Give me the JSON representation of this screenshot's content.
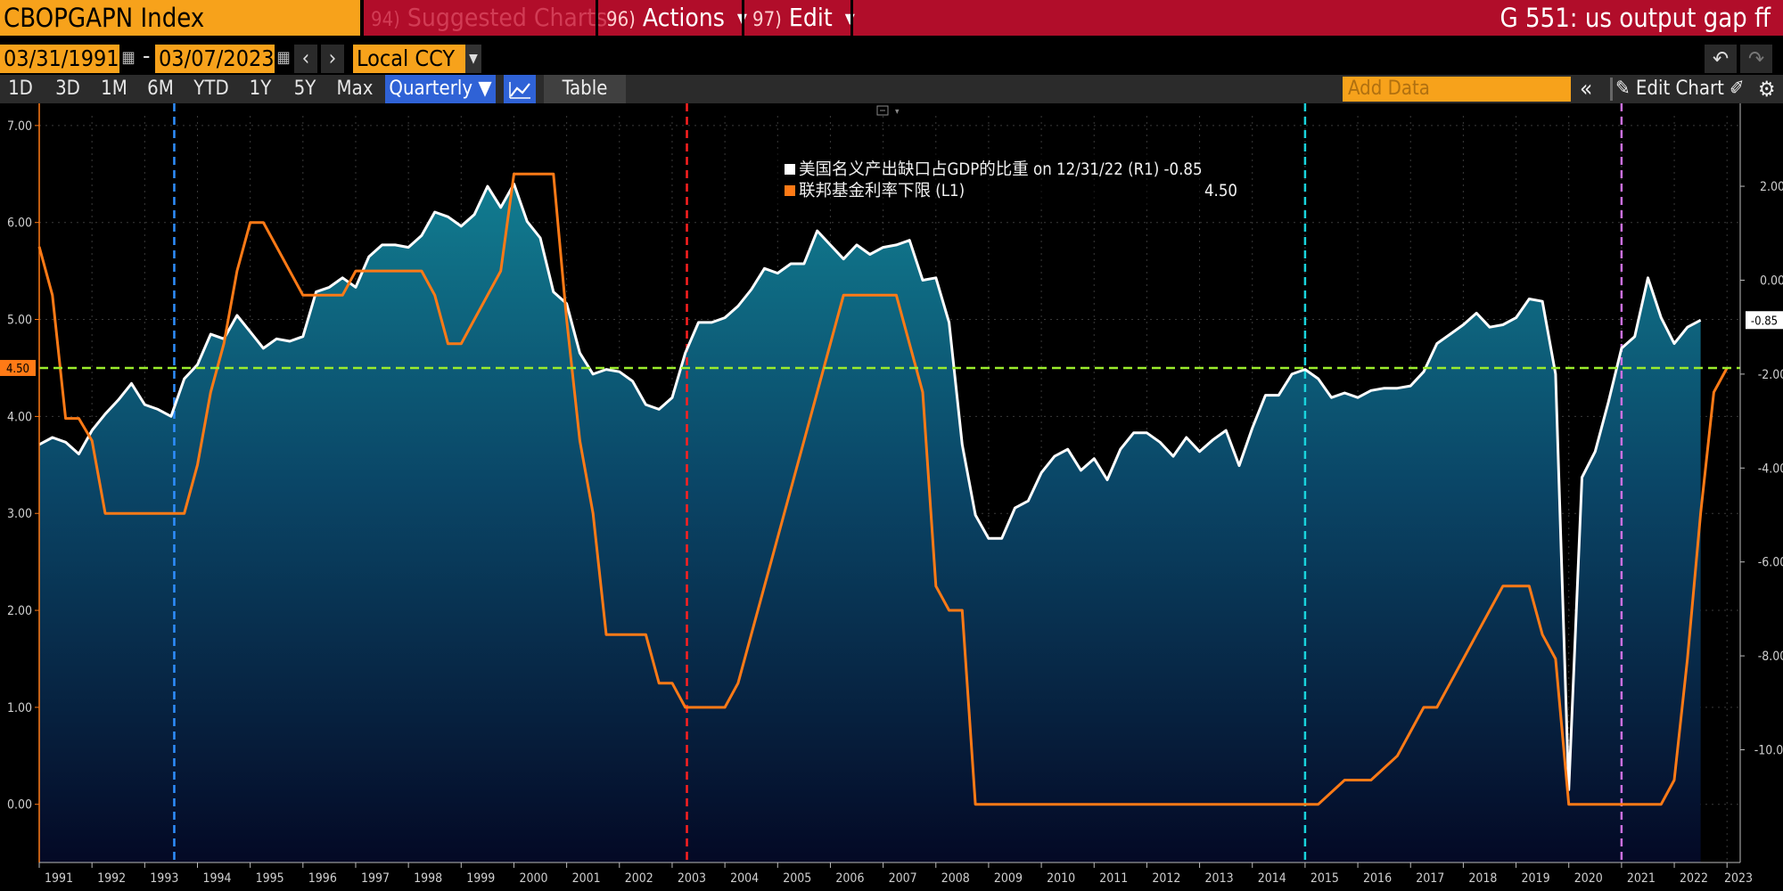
{
  "header": {
    "ticker": "CBOPGAPN Index",
    "menu": [
      {
        "num": "94)",
        "label": "Suggested Charts",
        "dim": true
      },
      {
        "num": "96)",
        "label": "Actions",
        "dim": false
      },
      {
        "num": "97)",
        "label": "Edit",
        "dim": false
      }
    ],
    "chart_title": "G 551: us output gap ff"
  },
  "date_range": {
    "start": "03/31/1991",
    "separator": "-",
    "end": "03/07/2023",
    "currency": "Local CCY"
  },
  "range_buttons": [
    "1D",
    "3D",
    "1M",
    "6M",
    "YTD",
    "1Y",
    "5Y",
    "Max"
  ],
  "periodicity": "Quarterly ▼",
  "table_label": "Table",
  "add_data_placeholder": "Add Data",
  "edit_chart_label": "Edit Chart",
  "colors": {
    "accent": "#f7a21b",
    "header_red": "#b10d2a",
    "active_blue": "#2f62d6",
    "series_orange": "#ff7a16",
    "series_white": "#ffffff",
    "area_top": "#10778b",
    "area_bottom": "#050a2c",
    "ref_line": "#9bec2c"
  },
  "chart_data": {
    "type": "line",
    "title": "",
    "legend": {
      "placement": "top-center",
      "rows": [
        {
          "label": "美国名义产出缺口占GDP的比重 on 12/31/22 (R1) -0.85",
          "value": "",
          "color": "#ffffff"
        },
        {
          "label": "联邦基金利率下限 (L1)",
          "value": "4.50",
          "color": "#ff7a16"
        }
      ]
    },
    "x_labels": [
      "1991",
      "1992",
      "1993",
      "1994",
      "1995",
      "1996",
      "1997",
      "1998",
      "1999",
      "2000",
      "2001",
      "2002",
      "2003",
      "2004",
      "2005",
      "2006",
      "2007",
      "2008",
      "2009",
      "2010",
      "2011",
      "2012",
      "2013",
      "2014",
      "2015",
      "2016",
      "2017",
      "2018",
      "2019",
      "2020",
      "2021",
      "2022",
      "2023"
    ],
    "left_axis": {
      "ticks": [
        "7.00",
        "6.00",
        "5.00",
        "4.00",
        "3.00",
        "2.00",
        "1.00",
        "0.00"
      ],
      "ylim": [
        -0.6,
        7.1
      ]
    },
    "right_axis": {
      "ticks": [
        "2.00",
        "0.00",
        "-2.00",
        "-4.00",
        "-6.00",
        "-8.00",
        "-10.00"
      ],
      "ylim": [
        -12.4,
        3.5
      ]
    },
    "last_value_labels": {
      "left": "4.50",
      "right": "-0.85"
    },
    "reference_line": {
      "axis": "left",
      "value": 4.5,
      "color": "#9bec2c"
    },
    "vertical_markers": [
      {
        "date": 1993.56,
        "color": "#2f8fff"
      },
      {
        "date": 2003.28,
        "color": "#ff2020"
      },
      {
        "date": 2015.0,
        "color": "#19d4dd"
      },
      {
        "date": 2021.0,
        "color": "#cc70e0"
      }
    ],
    "series": [
      {
        "name": "联邦基金利率下限",
        "axis": "left",
        "color": "#ff7a16",
        "points": [
          [
            1991.0,
            5.75
          ],
          [
            1991.25,
            5.25
          ],
          [
            1991.5,
            3.98
          ],
          [
            1991.75,
            3.98
          ],
          [
            1992.0,
            3.75
          ],
          [
            1992.25,
            3.0
          ],
          [
            1992.5,
            3.0
          ],
          [
            1992.75,
            3.0
          ],
          [
            1993.0,
            3.0
          ],
          [
            1993.25,
            3.0
          ],
          [
            1993.5,
            3.0
          ],
          [
            1993.75,
            3.0
          ],
          [
            1994.0,
            3.5
          ],
          [
            1994.25,
            4.25
          ],
          [
            1994.5,
            4.75
          ],
          [
            1994.75,
            5.5
          ],
          [
            1995.0,
            6.0
          ],
          [
            1995.25,
            6.0
          ],
          [
            1995.5,
            5.75
          ],
          [
            1995.75,
            5.5
          ],
          [
            1996.0,
            5.25
          ],
          [
            1996.25,
            5.25
          ],
          [
            1996.5,
            5.25
          ],
          [
            1996.75,
            5.25
          ],
          [
            1997.0,
            5.5
          ],
          [
            1997.25,
            5.5
          ],
          [
            1997.5,
            5.5
          ],
          [
            1997.75,
            5.5
          ],
          [
            1998.0,
            5.5
          ],
          [
            1998.25,
            5.5
          ],
          [
            1998.5,
            5.25
          ],
          [
            1998.75,
            4.75
          ],
          [
            1999.0,
            4.75
          ],
          [
            1999.25,
            5.0
          ],
          [
            1999.5,
            5.25
          ],
          [
            1999.75,
            5.5
          ],
          [
            2000.0,
            6.5
          ],
          [
            2000.25,
            6.5
          ],
          [
            2000.5,
            6.5
          ],
          [
            2000.75,
            6.5
          ],
          [
            2001.0,
            5.0
          ],
          [
            2001.25,
            3.75
          ],
          [
            2001.5,
            3.0
          ],
          [
            2001.75,
            1.75
          ],
          [
            2002.0,
            1.75
          ],
          [
            2002.25,
            1.75
          ],
          [
            2002.5,
            1.75
          ],
          [
            2002.75,
            1.25
          ],
          [
            2003.0,
            1.25
          ],
          [
            2003.25,
            1.0
          ],
          [
            2003.5,
            1.0
          ],
          [
            2003.75,
            1.0
          ],
          [
            2004.0,
            1.0
          ],
          [
            2004.25,
            1.25
          ],
          [
            2004.5,
            1.75
          ],
          [
            2004.75,
            2.25
          ],
          [
            2005.0,
            2.75
          ],
          [
            2005.25,
            3.25
          ],
          [
            2005.5,
            3.75
          ],
          [
            2005.75,
            4.25
          ],
          [
            2006.0,
            4.75
          ],
          [
            2006.25,
            5.25
          ],
          [
            2006.5,
            5.25
          ],
          [
            2006.75,
            5.25
          ],
          [
            2007.0,
            5.25
          ],
          [
            2007.25,
            5.25
          ],
          [
            2007.5,
            4.75
          ],
          [
            2007.75,
            4.25
          ],
          [
            2008.0,
            2.25
          ],
          [
            2008.25,
            2.0
          ],
          [
            2008.5,
            2.0
          ],
          [
            2008.75,
            0.0
          ],
          [
            2009.0,
            0.0
          ],
          [
            2010.0,
            0.0
          ],
          [
            2011.0,
            0.0
          ],
          [
            2012.0,
            0.0
          ],
          [
            2013.0,
            0.0
          ],
          [
            2014.0,
            0.0
          ],
          [
            2015.0,
            0.0
          ],
          [
            2015.25,
            0.0
          ],
          [
            2015.75,
            0.25
          ],
          [
            2016.0,
            0.25
          ],
          [
            2016.25,
            0.25
          ],
          [
            2016.75,
            0.5
          ],
          [
            2017.0,
            0.75
          ],
          [
            2017.25,
            1.0
          ],
          [
            2017.5,
            1.0
          ],
          [
            2017.75,
            1.25
          ],
          [
            2018.0,
            1.5
          ],
          [
            2018.25,
            1.75
          ],
          [
            2018.5,
            2.0
          ],
          [
            2018.75,
            2.25
          ],
          [
            2019.0,
            2.25
          ],
          [
            2019.25,
            2.25
          ],
          [
            2019.5,
            1.75
          ],
          [
            2019.75,
            1.5
          ],
          [
            2020.0,
            0.0
          ],
          [
            2020.25,
            0.0
          ],
          [
            2021.0,
            0.0
          ],
          [
            2021.5,
            0.0
          ],
          [
            2021.75,
            0.0
          ],
          [
            2022.0,
            0.25
          ],
          [
            2022.25,
            1.5
          ],
          [
            2022.5,
            3.0
          ],
          [
            2022.75,
            4.25
          ],
          [
            2023.0,
            4.5
          ]
        ]
      },
      {
        "name": "美国名义产出缺口占GDP的比重",
        "axis": "right",
        "color": "#ffffff",
        "points": [
          [
            1991.0,
            -3.5
          ],
          [
            1991.25,
            -3.35
          ],
          [
            1991.5,
            -3.45
          ],
          [
            1991.75,
            -3.7
          ],
          [
            1992.0,
            -3.2
          ],
          [
            1992.25,
            -2.85
          ],
          [
            1992.5,
            -2.55
          ],
          [
            1992.75,
            -2.2
          ],
          [
            1993.0,
            -2.65
          ],
          [
            1993.25,
            -2.75
          ],
          [
            1993.5,
            -2.9
          ],
          [
            1993.75,
            -2.1
          ],
          [
            1994.0,
            -1.8
          ],
          [
            1994.25,
            -1.15
          ],
          [
            1994.5,
            -1.25
          ],
          [
            1994.75,
            -0.75
          ],
          [
            1995.0,
            -1.1
          ],
          [
            1995.25,
            -1.45
          ],
          [
            1995.5,
            -1.25
          ],
          [
            1995.75,
            -1.3
          ],
          [
            1996.0,
            -1.2
          ],
          [
            1996.25,
            -0.25
          ],
          [
            1996.5,
            -0.15
          ],
          [
            1996.75,
            0.05
          ],
          [
            1997.0,
            -0.15
          ],
          [
            1997.25,
            0.5
          ],
          [
            1997.5,
            0.75
          ],
          [
            1997.75,
            0.75
          ],
          [
            1998.0,
            0.7
          ],
          [
            1998.25,
            0.95
          ],
          [
            1998.5,
            1.45
          ],
          [
            1998.75,
            1.35
          ],
          [
            1999.0,
            1.15
          ],
          [
            1999.25,
            1.4
          ],
          [
            1999.5,
            2.0
          ],
          [
            1999.75,
            1.55
          ],
          [
            2000.0,
            2.05
          ],
          [
            2000.25,
            1.25
          ],
          [
            2000.5,
            0.9
          ],
          [
            2000.75,
            -0.25
          ],
          [
            2001.0,
            -0.5
          ],
          [
            2001.25,
            -1.55
          ],
          [
            2001.5,
            -2.0
          ],
          [
            2001.75,
            -1.9
          ],
          [
            2002.0,
            -1.95
          ],
          [
            2002.25,
            -2.15
          ],
          [
            2002.5,
            -2.65
          ],
          [
            2002.75,
            -2.75
          ],
          [
            2003.0,
            -2.5
          ],
          [
            2003.25,
            -1.55
          ],
          [
            2003.5,
            -0.9
          ],
          [
            2003.75,
            -0.9
          ],
          [
            2004.0,
            -0.8
          ],
          [
            2004.25,
            -0.55
          ],
          [
            2004.5,
            -0.2
          ],
          [
            2004.75,
            0.25
          ],
          [
            2005.0,
            0.15
          ],
          [
            2005.25,
            0.35
          ],
          [
            2005.5,
            0.35
          ],
          [
            2005.75,
            1.05
          ],
          [
            2006.0,
            0.75
          ],
          [
            2006.25,
            0.45
          ],
          [
            2006.5,
            0.75
          ],
          [
            2006.75,
            0.55
          ],
          [
            2007.0,
            0.7
          ],
          [
            2007.25,
            0.75
          ],
          [
            2007.5,
            0.85
          ],
          [
            2007.75,
            0.0
          ],
          [
            2008.0,
            0.05
          ],
          [
            2008.25,
            -0.9
          ],
          [
            2008.5,
            -3.5
          ],
          [
            2008.75,
            -5.0
          ],
          [
            2009.0,
            -5.5
          ],
          [
            2009.25,
            -5.5
          ],
          [
            2009.5,
            -4.85
          ],
          [
            2009.75,
            -4.7
          ],
          [
            2010.0,
            -4.1
          ],
          [
            2010.25,
            -3.75
          ],
          [
            2010.5,
            -3.6
          ],
          [
            2010.75,
            -4.05
          ],
          [
            2011.0,
            -3.8
          ],
          [
            2011.25,
            -4.25
          ],
          [
            2011.5,
            -3.6
          ],
          [
            2011.75,
            -3.25
          ],
          [
            2012.0,
            -3.25
          ],
          [
            2012.25,
            -3.45
          ],
          [
            2012.5,
            -3.75
          ],
          [
            2012.75,
            -3.35
          ],
          [
            2013.0,
            -3.65
          ],
          [
            2013.25,
            -3.4
          ],
          [
            2013.5,
            -3.2
          ],
          [
            2013.75,
            -3.95
          ],
          [
            2014.0,
            -3.15
          ],
          [
            2014.25,
            -2.45
          ],
          [
            2014.5,
            -2.45
          ],
          [
            2014.75,
            -2.0
          ],
          [
            2015.0,
            -1.9
          ],
          [
            2015.25,
            -2.1
          ],
          [
            2015.5,
            -2.5
          ],
          [
            2015.75,
            -2.4
          ],
          [
            2016.0,
            -2.5
          ],
          [
            2016.25,
            -2.35
          ],
          [
            2016.5,
            -2.3
          ],
          [
            2016.75,
            -2.3
          ],
          [
            2017.0,
            -2.25
          ],
          [
            2017.25,
            -1.95
          ],
          [
            2017.5,
            -1.35
          ],
          [
            2017.75,
            -1.15
          ],
          [
            2018.0,
            -0.95
          ],
          [
            2018.25,
            -0.7
          ],
          [
            2018.5,
            -1.0
          ],
          [
            2018.75,
            -0.95
          ],
          [
            2019.0,
            -0.8
          ],
          [
            2019.25,
            -0.4
          ],
          [
            2019.5,
            -0.45
          ],
          [
            2019.75,
            -2.0
          ],
          [
            2020.0,
            -10.85
          ],
          [
            2020.25,
            -4.2
          ],
          [
            2020.5,
            -3.65
          ],
          [
            2020.75,
            -2.6
          ],
          [
            2021.0,
            -1.45
          ],
          [
            2021.25,
            -1.2
          ],
          [
            2021.5,
            0.05
          ],
          [
            2021.75,
            -0.8
          ],
          [
            2022.0,
            -1.35
          ],
          [
            2022.25,
            -1.0
          ],
          [
            2022.5,
            -0.85
          ]
        ]
      }
    ]
  }
}
